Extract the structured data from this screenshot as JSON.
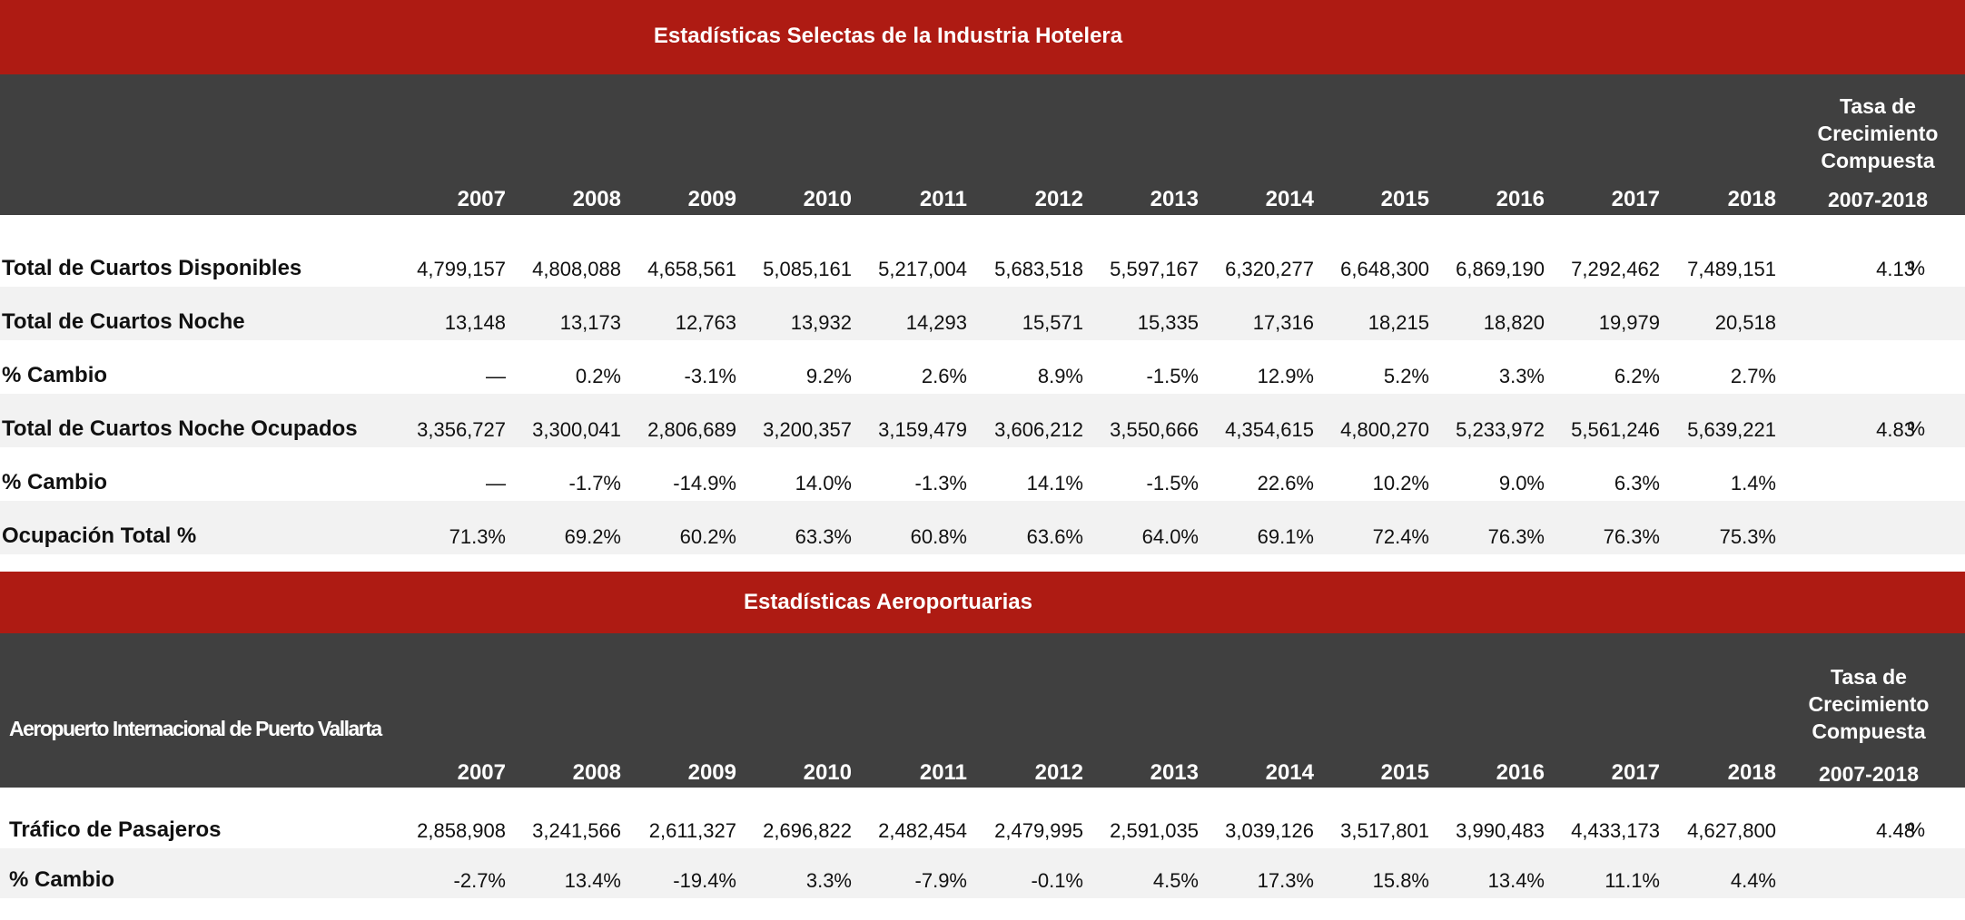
{
  "hotel": {
    "title": "Estadísticas Selectas de la Industria Hotelera",
    "years": [
      "2007",
      "2008",
      "2009",
      "2010",
      "2011",
      "2012",
      "2013",
      "2014",
      "2015",
      "2016",
      "2017",
      "2018"
    ],
    "cagr_header": [
      "Tasa de",
      "Crecimiento",
      "Compuesta",
      "2007-2018"
    ],
    "rows": [
      {
        "label": "Total de Cuartos Disponibles",
        "values": [
          "4,799,157",
          "4,808,088",
          "4,658,561",
          "5,085,161",
          "5,217,004",
          "5,683,518",
          "5,597,167",
          "6,320,277",
          "6,648,300",
          "6,869,190",
          "7,292,462",
          "7,489,151"
        ],
        "cagr": "4.13",
        "cagr_unit": "%"
      },
      {
        "label": "Total de Cuartos Noche",
        "values": [
          "13,148",
          "13,173",
          "12,763",
          "13,932",
          "14,293",
          "15,571",
          "15,335",
          "17,316",
          "18,215",
          "18,820",
          "19,979",
          "20,518"
        ],
        "cagr": "",
        "cagr_unit": ""
      },
      {
        "label": "% Cambio",
        "values": [
          "—",
          "0.2%",
          "-3.1%",
          "9.2%",
          "2.6%",
          "8.9%",
          "-1.5%",
          "12.9%",
          "5.2%",
          "3.3%",
          "6.2%",
          "2.7%"
        ],
        "cagr": "",
        "cagr_unit": ""
      },
      {
        "label": "Total de Cuartos Noche Ocupados",
        "values": [
          "3,356,727",
          "3,300,041",
          "2,806,689",
          "3,200,357",
          "3,159,479",
          "3,606,212",
          "3,550,666",
          "4,354,615",
          "4,800,270",
          "5,233,972",
          "5,561,246",
          "5,639,221"
        ],
        "cagr": "4.83",
        "cagr_unit": "%"
      },
      {
        "label": "% Cambio",
        "values": [
          "—",
          "-1.7%",
          "-14.9%",
          "14.0%",
          "-1.3%",
          "14.1%",
          "-1.5%",
          "22.6%",
          "10.2%",
          "9.0%",
          "6.3%",
          "1.4%"
        ],
        "cagr": "",
        "cagr_unit": ""
      },
      {
        "label": "Ocupación Total %",
        "values": [
          "71.3%",
          "69.2%",
          "60.2%",
          "63.3%",
          "60.8%",
          "63.6%",
          "64.0%",
          "69.1%",
          "72.4%",
          "76.3%",
          "76.3%",
          "75.3%"
        ],
        "cagr": "",
        "cagr_unit": ""
      }
    ]
  },
  "airport": {
    "title": "Estadísticas Aeroportuarias",
    "subtitle": "Aeropuerto Internacional de Puerto Vallarta",
    "years": [
      "2007",
      "2008",
      "2009",
      "2010",
      "2011",
      "2012",
      "2013",
      "2014",
      "2015",
      "2016",
      "2017",
      "2018"
    ],
    "cagr_header": [
      "Tasa de",
      "Crecimiento",
      "Compuesta",
      "2007-2018"
    ],
    "rows": [
      {
        "label": "Tráfico de Pasajeros",
        "values": [
          "2,858,908",
          "3,241,566",
          "2,611,327",
          "2,696,822",
          "2,482,454",
          "2,479,995",
          "2,591,035",
          "3,039,126",
          "3,517,801",
          "3,990,483",
          "4,433,173",
          "4,627,800"
        ],
        "cagr": "4.48",
        "cagr_unit": "%"
      },
      {
        "label": "% Cambio",
        "values": [
          "-2.7%",
          "13.4%",
          "-19.4%",
          "3.3%",
          "-7.9%",
          "-0.1%",
          "4.5%",
          "17.3%",
          "15.8%",
          "13.4%",
          "11.1%",
          "4.4%"
        ],
        "cagr": "",
        "cagr_unit": ""
      }
    ]
  }
}
